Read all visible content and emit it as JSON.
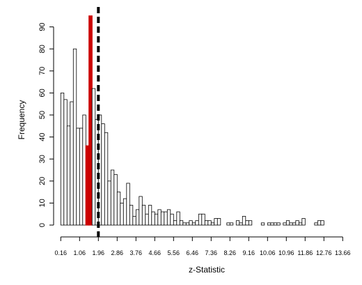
{
  "chart_data": {
    "type": "bar",
    "title": "",
    "xlabel": "z-Statistic",
    "ylabel": "Frequency",
    "xlim": [
      0,
      13.8
    ],
    "ylim": [
      0,
      95
    ],
    "bin_width": 0.15,
    "bin_start": 0.16,
    "x_tick_labels": [
      "0.16",
      "1.06",
      "1.96",
      "2.86",
      "3.76",
      "4.66",
      "5.56",
      "6.46",
      "7.36",
      "8.26",
      "9.16",
      "10.06",
      "10.96",
      "11.86",
      "12.76",
      "13.66"
    ],
    "x_tick_values": [
      0.16,
      1.06,
      1.96,
      2.86,
      3.76,
      4.66,
      5.56,
      6.46,
      7.36,
      8.26,
      9.16,
      10.06,
      10.96,
      11.86,
      12.76,
      13.66
    ],
    "y_tick_values": [
      0,
      10,
      20,
      30,
      40,
      50,
      60,
      70,
      80,
      90
    ],
    "y_tick_labels": [
      "0",
      "10",
      "20",
      "30",
      "40",
      "50",
      "60",
      "70",
      "80",
      "90"
    ],
    "values": [
      60,
      57,
      45,
      56,
      80,
      44,
      44,
      50,
      36,
      95,
      62,
      48,
      50,
      46,
      42,
      20,
      25,
      23,
      15,
      10,
      12,
      19,
      9,
      4,
      7,
      13,
      9,
      5,
      9,
      6,
      5,
      7,
      6,
      6,
      7,
      5,
      2,
      6,
      2,
      1,
      1,
      2,
      1,
      2,
      5,
      5,
      2,
      2,
      1,
      3,
      3,
      0,
      0,
      1,
      1,
      0,
      2,
      1,
      4,
      2,
      2,
      0,
      0,
      0,
      1,
      0,
      1,
      1,
      1,
      1,
      0,
      1,
      2,
      1,
      1,
      2,
      1,
      3,
      0,
      0,
      0,
      1,
      2,
      2
    ],
    "highlight_bins": [
      8,
      9
    ],
    "highlight_color": "#cc0000",
    "bar_fill": "#ffffff",
    "bar_stroke": "#000000",
    "vline_x": 1.96,
    "vline_style": "dashed",
    "vline_color": "#000000",
    "grid": false,
    "legend": "none"
  }
}
